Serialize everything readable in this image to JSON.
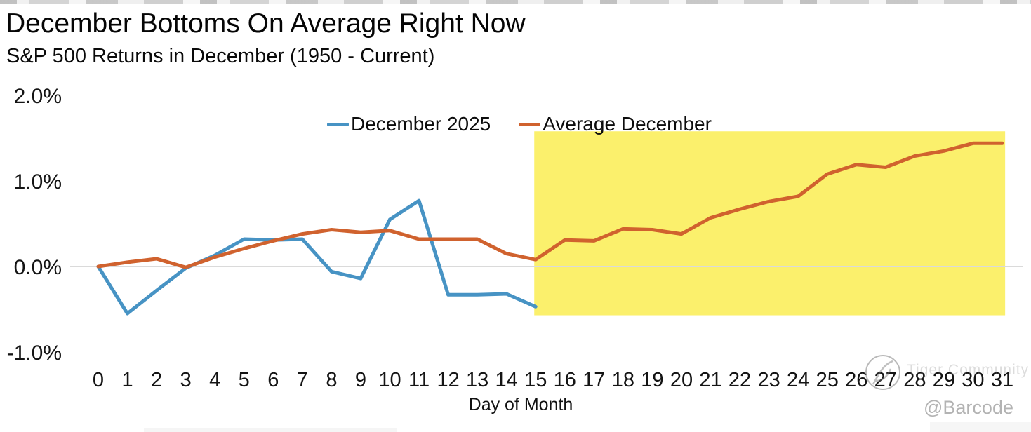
{
  "header": {
    "title": "December Bottoms On Average Right Now",
    "subtitle": "S&P 500 Returns in December (1950 - Current)"
  },
  "legend": {
    "series1_label": "December 2025",
    "series2_label": "Average December"
  },
  "chart_data": {
    "type": "line",
    "title": "December Bottoms On Average Right Now",
    "subtitle": "S&P 500 Returns in December (1950 - Current)",
    "xlabel": "Day of Month",
    "ylabel": "",
    "x": [
      0,
      1,
      2,
      3,
      4,
      5,
      6,
      7,
      8,
      9,
      10,
      11,
      12,
      13,
      14,
      15,
      16,
      17,
      18,
      19,
      20,
      21,
      22,
      23,
      24,
      25,
      26,
      27,
      28,
      29,
      30,
      31
    ],
    "y_ticks": [
      {
        "label": "2.0%",
        "value": 2.0
      },
      {
        "label": "1.0%",
        "value": 1.0
      },
      {
        "label": "0.0%",
        "value": 0.0
      },
      {
        "label": "-1.0%",
        "value": -1.0
      }
    ],
    "ylim": [
      -1.3,
      2.2
    ],
    "grid": "single horizontal gridline at 0.0% only",
    "legend_position": "top-center",
    "series": [
      {
        "name": "December 2025",
        "color": "#4793c4",
        "values": [
          0.0,
          -0.55,
          -0.28,
          -0.02,
          0.13,
          0.32,
          0.31,
          0.32,
          -0.06,
          -0.14,
          0.55,
          0.77,
          -0.33,
          -0.33,
          -0.32,
          -0.47,
          null,
          null,
          null,
          null,
          null,
          null,
          null,
          null,
          null,
          null,
          null,
          null,
          null,
          null,
          null,
          null
        ]
      },
      {
        "name": "Average December",
        "color": "#d0622e",
        "values": [
          0.0,
          0.05,
          0.09,
          -0.01,
          0.11,
          0.21,
          0.3,
          0.38,
          0.43,
          0.4,
          0.42,
          0.32,
          0.32,
          0.32,
          0.15,
          0.08,
          0.31,
          0.3,
          0.44,
          0.43,
          0.38,
          0.57,
          0.67,
          0.76,
          0.82,
          1.08,
          1.19,
          1.16,
          1.29,
          1.35,
          1.44,
          1.44
        ]
      }
    ],
    "highlight_region": {
      "x_start": 15,
      "x_end": 31.1,
      "y_top": 1.58,
      "y_bottom": -0.57,
      "color": "#fbf06c"
    }
  },
  "colors": {
    "series1": "#4793c4",
    "series2": "#d0622e",
    "highlight": "#fbf06c",
    "gridline": "#dadada"
  },
  "watermark": {
    "community": "Tiger Community",
    "handle": "@Barcode"
  }
}
